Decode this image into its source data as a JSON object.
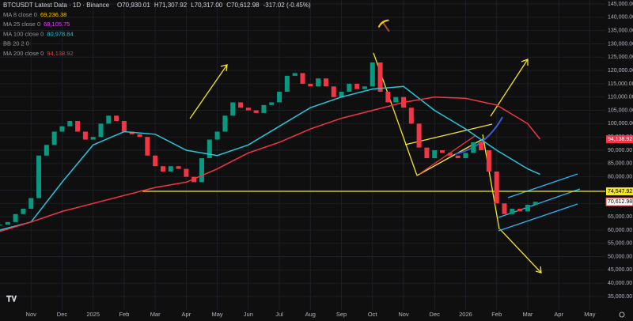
{
  "header": {
    "symbol": "BTCUSDT Latest Data · 1D · Binance",
    "ohlc": [
      "O70,930.01",
      "H71,307.92",
      "L70,317.00",
      "C70,612.98",
      "-317.02 (-0.45%)"
    ]
  },
  "indicators": [
    {
      "name": "MA 8 close 0",
      "label": "69,236.38",
      "color": "#f5c518"
    },
    {
      "name": "MA 25 close 0",
      "label": "68,105.75",
      "color": "#e040fb"
    },
    {
      "name": "MA 100 close 0",
      "label": "80,978.84",
      "color": "#26c6da"
    },
    {
      "name": "BB 20 2 0",
      "label": null,
      "color": "#787b86"
    },
    {
      "name": "MA 200 close 0",
      "label": "94,138.92",
      "color": "#f23645"
    }
  ],
  "chart_data": {
    "type": "candlestick",
    "xlim": [
      0,
      19.5
    ],
    "xticks": [
      {
        "value": 1,
        "label": "Nov"
      },
      {
        "value": 2,
        "label": "Dec"
      },
      {
        "value": 3,
        "label": "2025"
      },
      {
        "value": 4,
        "label": "Feb"
      },
      {
        "value": 5,
        "label": "Mar"
      },
      {
        "value": 6,
        "label": "Apr"
      },
      {
        "value": 7,
        "label": "May"
      },
      {
        "value": 8,
        "label": "Jun"
      },
      {
        "value": 9,
        "label": "Jul"
      },
      {
        "value": 10,
        "label": "Aug"
      },
      {
        "value": 11,
        "label": "Sep"
      },
      {
        "value": 12,
        "label": "Oct"
      },
      {
        "value": 13,
        "label": "Nov"
      },
      {
        "value": 14,
        "label": "Dec"
      },
      {
        "value": 15,
        "label": "2026"
      },
      {
        "value": 16,
        "label": "Feb"
      },
      {
        "value": 17,
        "label": "Mar"
      },
      {
        "value": 18,
        "label": "Apr"
      },
      {
        "value": 19,
        "label": "May"
      }
    ],
    "ylim": [
      29950,
      146490
    ],
    "yticks": [
      {
        "value": 35000,
        "label": "35,000.00"
      },
      {
        "value": 40000,
        "label": "40,000.00"
      },
      {
        "value": 45000,
        "label": "45,000.00"
      },
      {
        "value": 50000,
        "label": "50,000.00"
      },
      {
        "value": 55000,
        "label": "55,000.00"
      },
      {
        "value": 60000,
        "label": "60,000.00"
      },
      {
        "value": 65000,
        "label": "65,000.00"
      },
      {
        "value": 70000,
        "label": "70,000.00"
      },
      {
        "value": 75000,
        "label": "75,000.00"
      },
      {
        "value": 80000,
        "label": "80,000.00"
      },
      {
        "value": 85000,
        "label": "85,000.00"
      },
      {
        "value": 90000,
        "label": "90,000.00"
      },
      {
        "value": 95000,
        "label": "95,000.00"
      },
      {
        "value": 100000,
        "label": "100,000.00"
      },
      {
        "value": 105000,
        "label": "105,000.00"
      },
      {
        "value": 110000,
        "label": "110,000.00"
      },
      {
        "value": 115000,
        "label": "115,000.00"
      },
      {
        "value": 120000,
        "label": "120,000.00"
      },
      {
        "value": 125000,
        "label": "125,000.00"
      },
      {
        "value": 130000,
        "label": "130,000.00"
      },
      {
        "value": 135000,
        "label": "135,000.00"
      },
      {
        "value": 140000,
        "label": "140,000.00"
      },
      {
        "value": 145000,
        "label": "145,000.00"
      }
    ],
    "grid": true,
    "up_color": "#089981",
    "down_color": "#f23645",
    "x": [
      0,
      0.25,
      0.5,
      0.75,
      1,
      1.25,
      1.5,
      1.75,
      2,
      2.25,
      2.5,
      2.75,
      3,
      3.25,
      3.5,
      3.75,
      4,
      4.25,
      4.5,
      4.75,
      5,
      5.25,
      5.5,
      5.75,
      6,
      6.25,
      6.5,
      6.75,
      7,
      7.25,
      7.5,
      7.75,
      8,
      8.25,
      8.5,
      8.75,
      9,
      9.25,
      9.5,
      9.75,
      10,
      10.25,
      10.5,
      10.75,
      11,
      11.25,
      11.5,
      11.75,
      12,
      12.25,
      12.5,
      12.75,
      13,
      13.25,
      13.5,
      13.75,
      14,
      14.25,
      14.5,
      14.75,
      15,
      15.25,
      15.5,
      15.75,
      16,
      16.25,
      16.5,
      16.75,
      17,
      17.25
    ],
    "close": [
      62000,
      63000,
      66000,
      68000,
      72000,
      88000,
      92000,
      97000,
      99000,
      101000,
      97000,
      94000,
      95000,
      100000,
      103000,
      101000,
      97000,
      96000,
      95000,
      88000,
      84000,
      82000,
      84000,
      83000,
      80000,
      78000,
      87000,
      94000,
      97000,
      103000,
      108000,
      106000,
      105000,
      104000,
      107000,
      108000,
      112000,
      118000,
      119000,
      115000,
      114000,
      117000,
      114000,
      110000,
      112000,
      115000,
      113000,
      114000,
      123000,
      112000,
      108000,
      110000,
      106000,
      100000,
      91000,
      87000,
      90000,
      89000,
      88000,
      87000,
      89000,
      93000,
      90000,
      82000,
      70000,
      66000,
      68000,
      67000,
      69500,
      70612.98
    ],
    "series": [
      {
        "name": "MA 100 close 0",
        "color": "#26c6da",
        "x": [
          0,
          1,
          2,
          3,
          4,
          5,
          6,
          7,
          8,
          9,
          10,
          11,
          12,
          13,
          14,
          15,
          16,
          17,
          17.4
        ],
        "values": [
          60000,
          63000,
          78000,
          92000,
          97000,
          96000,
          90000,
          88000,
          92000,
          99000,
          106000,
          110000,
          113000,
          114000,
          105000,
          98000,
          90000,
          83000,
          80978.84
        ]
      },
      {
        "name": "MA 200 close 0",
        "color": "#f23645",
        "x": [
          0,
          1,
          2,
          3,
          4,
          5,
          6,
          7,
          8,
          9,
          10,
          11,
          12,
          13,
          14,
          15,
          16,
          17,
          17.4
        ],
        "values": [
          59500,
          63000,
          67000,
          70000,
          73000,
          76000,
          78000,
          83000,
          89000,
          93000,
          98000,
          102000,
          105000,
          108000,
          110000,
          109500,
          107000,
          100000,
          94138.92
        ]
      }
    ],
    "hline": {
      "value": 74547.92,
      "label": "74,547.92",
      "color": "#f5e52a"
    },
    "price_labels": [
      {
        "value": 94138.92,
        "label": "94,138.92",
        "color": "#f23645"
      },
      {
        "value": 70612.98,
        "label": "70,612.98",
        "color": "#f23645"
      }
    ]
  }
}
